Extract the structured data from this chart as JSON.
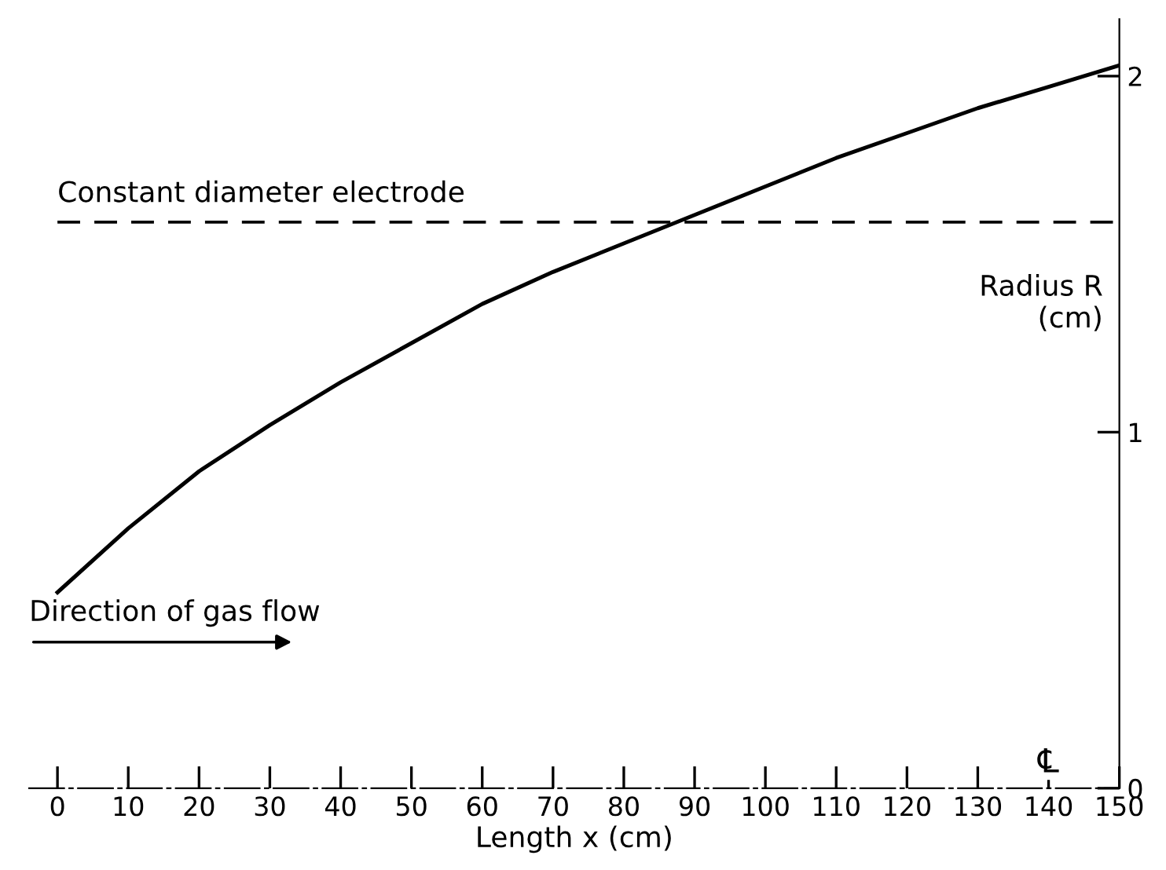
{
  "chart_data": {
    "type": "line",
    "xlabel": "Length x (cm)",
    "ylabel": "Radius R\n(cm)",
    "x": [
      0,
      10,
      20,
      30,
      40,
      50,
      60,
      70,
      80,
      90,
      100,
      110,
      120,
      130,
      140,
      150
    ],
    "series": [
      {
        "color": "#000000",
        "values": [
          0.55,
          0.73,
          0.89,
          1.02,
          1.14,
          1.25,
          1.36,
          1.45,
          1.53,
          1.61,
          1.69,
          1.77,
          1.84,
          1.91,
          1.97,
          2.03
        ]
      }
    ],
    "xlim": [
      -4,
      150
    ],
    "ylim": [
      0,
      2.16
    ],
    "xticks": [
      0,
      10,
      20,
      30,
      40,
      50,
      60,
      70,
      80,
      90,
      100,
      110,
      120,
      130,
      140,
      150
    ],
    "yticks": [
      0,
      1,
      2
    ],
    "ref_lines": [
      {
        "axis": "y",
        "value": 1.59,
        "label": "Constant diameter electrode",
        "line_style": "dashed",
        "color": "#000000"
      }
    ],
    "annotations": [
      "Direction of gas flow",
      "℄"
    ],
    "grid": false,
    "legend": false,
    "marker": "none",
    "line_style": "solid"
  }
}
